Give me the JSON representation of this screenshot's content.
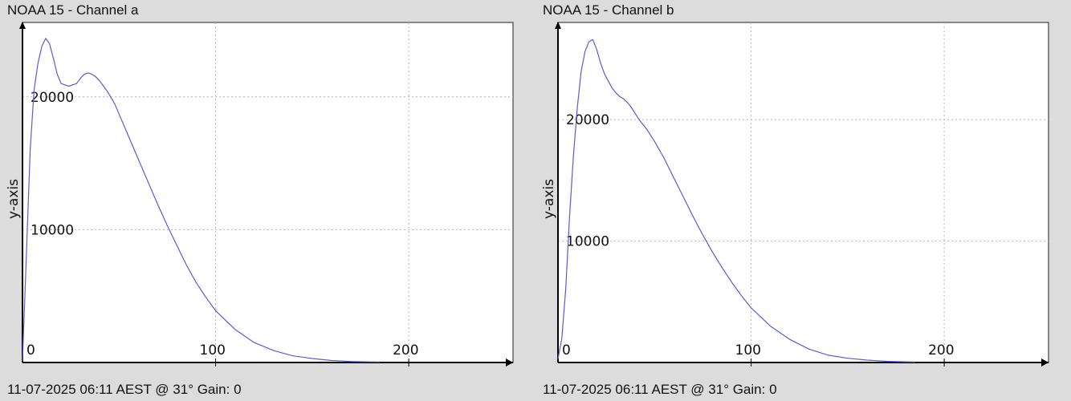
{
  "chart_data": [
    {
      "type": "line",
      "title": "NOAA 15 - Channel a",
      "footer": "11-07-2025 06:11 AEST @ 31° Gain: 0",
      "ylabel": "y-axis",
      "xlabel": "",
      "xlim": [
        0,
        254
      ],
      "ylim": [
        0,
        25600
      ],
      "xticks": [
        "0",
        "100",
        "200"
      ],
      "xtick_values": [
        0,
        100,
        200
      ],
      "yticks": [
        "10000",
        "20000"
      ],
      "ytick_values": [
        10000,
        20000
      ],
      "grid": true,
      "line_color": "#5b5bd6",
      "series": [
        {
          "x": [
            0,
            2,
            4,
            6,
            8,
            10,
            12,
            14,
            16,
            18,
            20,
            22,
            24,
            26,
            28,
            30,
            32,
            34,
            36,
            38,
            40,
            42,
            44,
            46,
            48,
            50,
            55,
            60,
            65,
            70,
            75,
            80,
            85,
            90,
            95,
            100,
            110,
            120,
            130,
            140,
            150,
            160,
            170,
            180,
            185
          ],
          "y": [
            100,
            8000,
            16000,
            20500,
            22500,
            23800,
            24400,
            24000,
            22900,
            21700,
            21000,
            20900,
            20800,
            20900,
            21000,
            21400,
            21700,
            21800,
            21700,
            21500,
            21200,
            20800,
            20400,
            19900,
            19400,
            18700,
            17000,
            15300,
            13600,
            11900,
            10300,
            8800,
            7300,
            6000,
            4900,
            3900,
            2500,
            1500,
            900,
            500,
            300,
            150,
            80,
            50,
            40
          ]
        }
      ]
    },
    {
      "type": "line",
      "title": "NOAA 15 - Channel b",
      "footer": "11-07-2025 06:11 AEST @ 31° Gain: 0",
      "ylabel": "y-axis",
      "xlabel": "",
      "xlim": [
        0,
        254
      ],
      "ylim": [
        0,
        28000
      ],
      "xticks": [
        "0",
        "100",
        "200"
      ],
      "xtick_values": [
        0,
        100,
        200
      ],
      "yticks": [
        "10000",
        "20000"
      ],
      "ytick_values": [
        10000,
        20000
      ],
      "grid": true,
      "line_color": "#5b5bd6",
      "series": [
        {
          "x": [
            0,
            2,
            4,
            6,
            8,
            10,
            12,
            14,
            16,
            18,
            20,
            22,
            24,
            26,
            28,
            30,
            32,
            34,
            36,
            38,
            40,
            42,
            44,
            46,
            48,
            50,
            55,
            60,
            65,
            70,
            75,
            80,
            85,
            90,
            95,
            100,
            110,
            120,
            130,
            140,
            150,
            160,
            170,
            180,
            185
          ],
          "y": [
            300,
            2000,
            6000,
            12000,
            17000,
            21000,
            24000,
            25600,
            26400,
            26600,
            25800,
            24700,
            23800,
            23200,
            22600,
            22200,
            21900,
            21700,
            21400,
            21000,
            20500,
            20000,
            19600,
            19200,
            18700,
            18200,
            16800,
            15200,
            13600,
            12000,
            10500,
            9100,
            7800,
            6600,
            5500,
            4500,
            3000,
            1900,
            1100,
            600,
            350,
            200,
            100,
            60,
            40
          ]
        }
      ]
    }
  ]
}
